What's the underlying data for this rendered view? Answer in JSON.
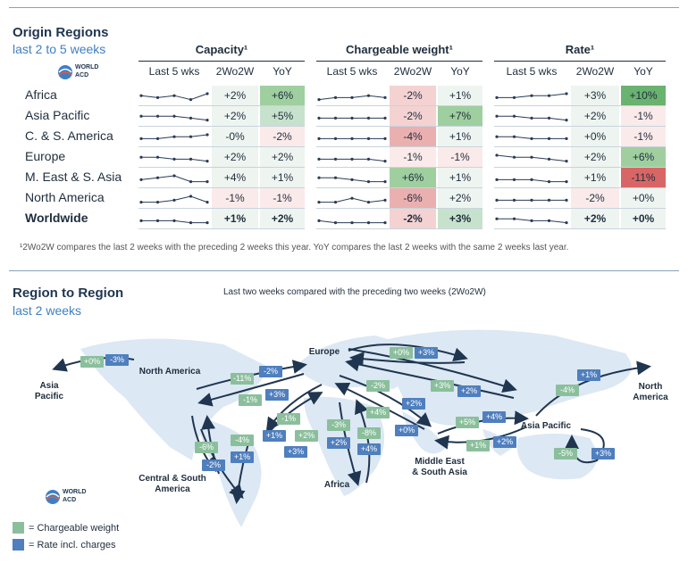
{
  "origin": {
    "title": "Origin Regions",
    "subtitle": "last 2 to 5 weeks",
    "logo_text": [
      "WORLD",
      "ACD"
    ],
    "groups": [
      "Capacity¹",
      "Chargeable weight¹",
      "Rate¹"
    ],
    "col_headers": [
      "Last 5 wks",
      "2Wo2W",
      "YoY"
    ],
    "rows": [
      {
        "label": "Africa",
        "cap": [
          [
            "+2%",
            "n0"
          ],
          [
            "+6%",
            "g2"
          ]
        ],
        "cw": [
          [
            "-2%",
            "r1"
          ],
          [
            "+1%",
            "n0"
          ]
        ],
        "rate": [
          [
            "+3%",
            "n0"
          ],
          [
            "+10%",
            "g3"
          ]
        ],
        "spark": [
          [
            3,
            2,
            3,
            1,
            4
          ],
          [
            1,
            2,
            2,
            3,
            2
          ],
          [
            2,
            2,
            3,
            3,
            4
          ]
        ]
      },
      {
        "label": "Asia Pacific",
        "cap": [
          [
            "+2%",
            "n0"
          ],
          [
            "+5%",
            "g1"
          ]
        ],
        "cw": [
          [
            "-2%",
            "r1"
          ],
          [
            "+7%",
            "g2"
          ]
        ],
        "rate": [
          [
            "+2%",
            "n0"
          ],
          [
            "-1%",
            "r0"
          ]
        ],
        "spark": [
          [
            3,
            3,
            3,
            2,
            1
          ],
          [
            2,
            2,
            2,
            2,
            2
          ],
          [
            3,
            3,
            2,
            2,
            1
          ]
        ]
      },
      {
        "label": "C. & S. America",
        "cap": [
          [
            "-0%",
            "n0"
          ],
          [
            "-2%",
            "r0"
          ]
        ],
        "cw": [
          [
            "-4%",
            "r2"
          ],
          [
            "+1%",
            "n0"
          ]
        ],
        "rate": [
          [
            "+0%",
            "n0"
          ],
          [
            "-1%",
            "r0"
          ]
        ],
        "spark": [
          [
            2,
            2,
            3,
            3,
            4
          ],
          [
            2,
            2,
            2,
            2,
            2
          ],
          [
            3,
            3,
            2,
            2,
            2
          ]
        ]
      },
      {
        "label": "Europe",
        "cap": [
          [
            "+2%",
            "n0"
          ],
          [
            "+2%",
            "n0"
          ]
        ],
        "cw": [
          [
            "-1%",
            "r0"
          ],
          [
            "-1%",
            "r0"
          ]
        ],
        "rate": [
          [
            "+2%",
            "n0"
          ],
          [
            "+6%",
            "g2"
          ]
        ],
        "spark": [
          [
            3,
            3,
            2,
            2,
            1
          ],
          [
            2,
            2,
            2,
            2,
            1
          ],
          [
            4,
            3,
            3,
            2,
            1
          ]
        ]
      },
      {
        "label": "M. East & S. Asia",
        "cap": [
          [
            "+4%",
            "n0"
          ],
          [
            "+1%",
            "n0"
          ]
        ],
        "cw": [
          [
            "+6%",
            "g2"
          ],
          [
            "+1%",
            "n0"
          ]
        ],
        "rate": [
          [
            "+1%",
            "n0"
          ],
          [
            "-11%",
            "r3"
          ]
        ],
        "spark": [
          [
            2,
            3,
            4,
            1,
            1
          ],
          [
            3,
            3,
            2,
            1,
            1
          ],
          [
            2,
            2,
            2,
            1,
            1
          ]
        ]
      },
      {
        "label": "North America",
        "cap": [
          [
            "-1%",
            "r0"
          ],
          [
            "-1%",
            "r0"
          ]
        ],
        "cw": [
          [
            "-6%",
            "r2"
          ],
          [
            "+2%",
            "n0"
          ]
        ],
        "rate": [
          [
            "-2%",
            "r0"
          ],
          [
            "+0%",
            "n0"
          ]
        ],
        "spark": [
          [
            1,
            1,
            2,
            4,
            1
          ],
          [
            1,
            1,
            3,
            1,
            2
          ],
          [
            2,
            2,
            2,
            2,
            2
          ]
        ]
      },
      {
        "label": "Worldwide",
        "cap": [
          [
            "+1%",
            "n0"
          ],
          [
            "+2%",
            "n0"
          ]
        ],
        "cw": [
          [
            "-2%",
            "r1"
          ],
          [
            "+3%",
            "g1"
          ]
        ],
        "rate": [
          [
            "+2%",
            "n0"
          ],
          [
            "+0%",
            "n0"
          ]
        ],
        "spark": [
          [
            2,
            2,
            2,
            1,
            1
          ],
          [
            2,
            1,
            1,
            1,
            1
          ],
          [
            3,
            3,
            2,
            2,
            1
          ]
        ],
        "bold": true
      }
    ],
    "footnote": "¹2Wo2W compares the last 2 weeks with the preceding 2 weeks this year. YoY compares the last 2 weeks with the same 2 weeks last year."
  },
  "r2r": {
    "title": "Region to Region",
    "subtitle": "last 2 weeks",
    "chart_title": "Last two weeks compared with the preceding two weeks (2Wo2W)",
    "legend": [
      "= Chargeable weight",
      "= Rate incl. charges"
    ],
    "regions": [
      {
        "name": "Asia\nPacific",
        "id": "ap-west"
      },
      {
        "name": "North America",
        "id": "na"
      },
      {
        "name": "Europe",
        "id": "eu"
      },
      {
        "name": "North\nAmerica",
        "id": "na-east"
      },
      {
        "name": "Asia Pacific",
        "id": "ap"
      },
      {
        "name": "Middle East\n& South Asia",
        "id": "mesa"
      },
      {
        "name": "Africa",
        "id": "af"
      },
      {
        "name": "Central & South\nAmerica",
        "id": "csa"
      }
    ],
    "badges": [
      {
        "t": "+0%",
        "c": "g"
      },
      {
        "t": "-3%",
        "c": "b"
      },
      {
        "t": "+0%",
        "c": "g"
      },
      {
        "t": "+3%",
        "c": "b"
      },
      {
        "t": "-11%",
        "c": "g"
      },
      {
        "t": "-2%",
        "c": "b"
      },
      {
        "t": "-1%",
        "c": "g"
      },
      {
        "t": "+3%",
        "c": "b"
      },
      {
        "t": "-2%",
        "c": "g"
      },
      {
        "t": "+3%",
        "c": "g"
      },
      {
        "t": "+2%",
        "c": "b"
      },
      {
        "t": "+1%",
        "c": "b"
      },
      {
        "t": "-4%",
        "c": "g"
      },
      {
        "t": "+2%",
        "c": "b"
      },
      {
        "t": "+4%",
        "c": "g"
      },
      {
        "t": "+0%",
        "c": "b"
      },
      {
        "t": "+5%",
        "c": "g"
      },
      {
        "t": "+4%",
        "c": "b"
      },
      {
        "t": "+1%",
        "c": "g"
      },
      {
        "t": "+2%",
        "c": "b"
      },
      {
        "t": "-1%",
        "c": "g"
      },
      {
        "t": "+1%",
        "c": "b"
      },
      {
        "t": "+2%",
        "c": "g"
      },
      {
        "t": "+3%",
        "c": "b"
      },
      {
        "t": "-3%",
        "c": "g"
      },
      {
        "t": "+2%",
        "c": "b"
      },
      {
        "t": "-8%",
        "c": "g"
      },
      {
        "t": "+4%",
        "c": "b"
      },
      {
        "t": "-6%",
        "c": "g"
      },
      {
        "t": "-2%",
        "c": "b"
      },
      {
        "t": "-4%",
        "c": "g"
      },
      {
        "t": "+1%",
        "c": "b"
      },
      {
        "t": "-5%",
        "c": "g"
      },
      {
        "t": "+3%",
        "c": "b"
      }
    ]
  },
  "colors": {
    "n0": "#eef4f0",
    "g1": "#c7e2cc",
    "g2": "#9fcf9f",
    "g3": "#6ab270",
    "r0": "#fbeaea",
    "r1": "#f4d2d2",
    "r2": "#eab0b0",
    "r3": "#d96666",
    "green_badge": "#8bbf9c",
    "blue_badge": "#4f7fbe"
  }
}
